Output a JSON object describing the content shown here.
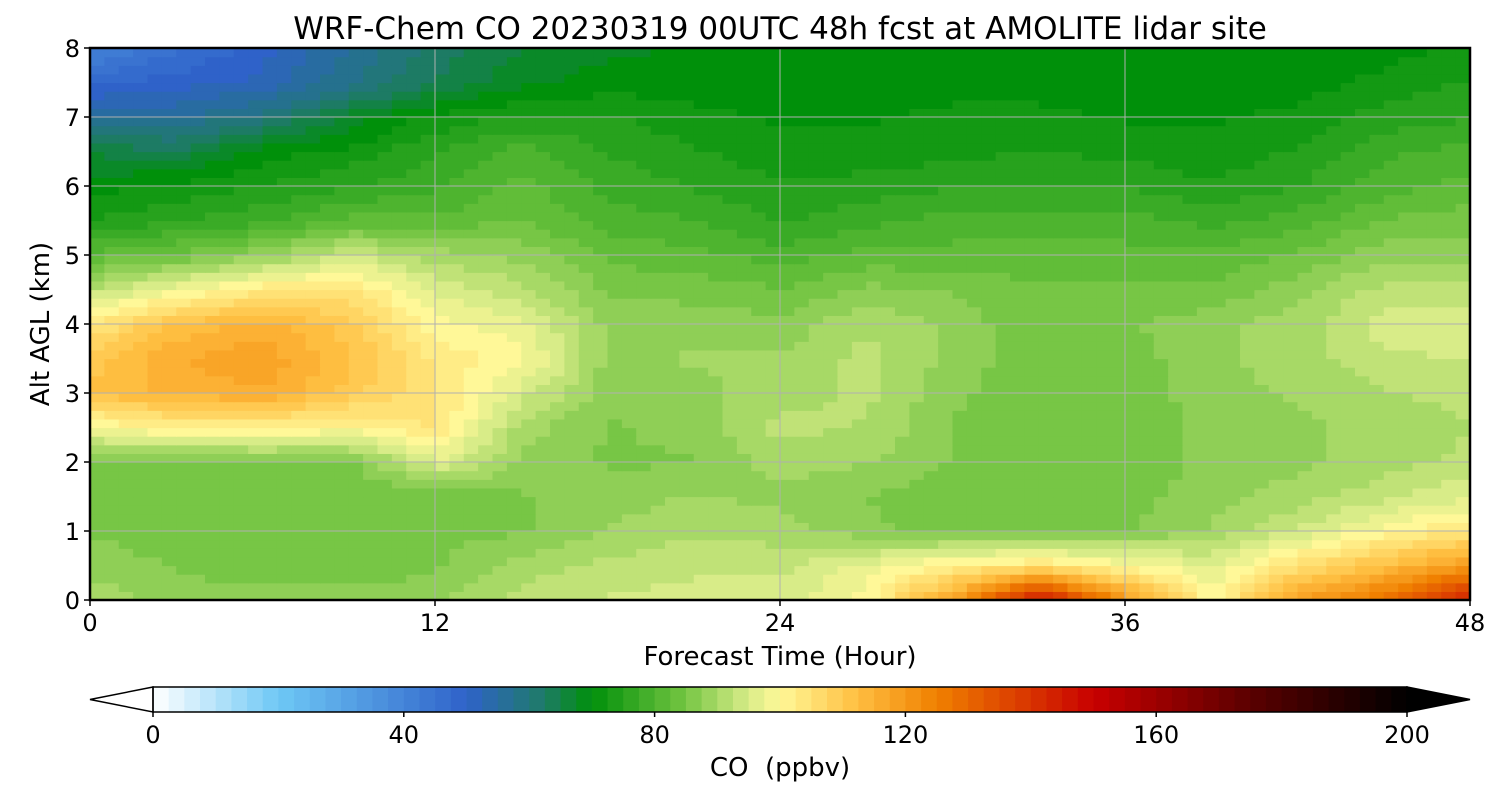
{
  "chart_data": {
    "type": "heatmap",
    "title": "WRF-Chem CO  20230319 00UTC 48h fcst at AMOLITE lidar site",
    "xlabel": "Forecast Time (Hour)",
    "ylabel": "Alt AGL (km)",
    "xlim": [
      0,
      48
    ],
    "ylim": [
      0,
      8
    ],
    "x_ticks": [
      0,
      12,
      24,
      36,
      48
    ],
    "y_ticks": [
      0,
      1,
      2,
      3,
      4,
      5,
      6,
      7,
      8
    ],
    "grid": true,
    "colorbar": {
      "label": "CO  (ppbv)",
      "range": [
        0,
        200
      ],
      "ticks": [
        0,
        40,
        80,
        120,
        160,
        200
      ],
      "extend": "both",
      "stops": [
        {
          "value": 0,
          "color": "#ffffff"
        },
        {
          "value": 20,
          "color": "#6ec8f5"
        },
        {
          "value": 50,
          "color": "#2f62c9"
        },
        {
          "value": 62,
          "color": "#1f7a6a"
        },
        {
          "value": 70,
          "color": "#00900a"
        },
        {
          "value": 84,
          "color": "#6dc23e"
        },
        {
          "value": 95,
          "color": "#d8ec88"
        },
        {
          "value": 100,
          "color": "#fff898"
        },
        {
          "value": 112,
          "color": "#ffc043"
        },
        {
          "value": 125,
          "color": "#f08000"
        },
        {
          "value": 150,
          "color": "#c80000"
        },
        {
          "value": 175,
          "color": "#5a0000"
        },
        {
          "value": 200,
          "color": "#000000"
        }
      ]
    },
    "x": [
      0,
      3,
      6,
      9,
      12,
      15,
      18,
      21,
      24,
      27,
      30,
      33,
      36,
      39,
      42,
      45,
      48
    ],
    "y": [
      0,
      0.5,
      1,
      1.5,
      2,
      2.5,
      3,
      3.5,
      4,
      4.5,
      5,
      5.5,
      6,
      6.5,
      7,
      7.5,
      8
    ],
    "values": [
      [
        90,
        88,
        88,
        88,
        88,
        92,
        94,
        95,
        95,
        100,
        118,
        148,
        120,
        100,
        118,
        128,
        145
      ],
      [
        88,
        86,
        84,
        84,
        86,
        90,
        92,
        93,
        93,
        97,
        102,
        104,
        100,
        96,
        105,
        112,
        120
      ],
      [
        86,
        84,
        84,
        84,
        85,
        86,
        89,
        91,
        90,
        87,
        85,
        85,
        86,
        89,
        94,
        100,
        104
      ],
      [
        85,
        84,
        84,
        84,
        84,
        86,
        87,
        89,
        88,
        86,
        85,
        84,
        85,
        88,
        90,
        93,
        96
      ],
      [
        86,
        84,
        85,
        85,
        96,
        88,
        86,
        86,
        90,
        89,
        86,
        84,
        84,
        87,
        88,
        90,
        92
      ],
      [
        98,
        102,
        102,
        100,
        104,
        90,
        86,
        87,
        92,
        91,
        86,
        84,
        84,
        87,
        88,
        90,
        91
      ],
      [
        112,
        115,
        116,
        110,
        104,
        95,
        87,
        88,
        90,
        92,
        87,
        84,
        84,
        88,
        89,
        91,
        92
      ],
      [
        110,
        116,
        118,
        112,
        103,
        100,
        88,
        89,
        89,
        92,
        88,
        84,
        85,
        88,
        90,
        93,
        94
      ],
      [
        103,
        112,
        115,
        110,
        100,
        97,
        88,
        88,
        87,
        91,
        88,
        84,
        86,
        88,
        90,
        95,
        95
      ],
      [
        92,
        98,
        103,
        104,
        96,
        92,
        86,
        85,
        84,
        87,
        86,
        84,
        84,
        84,
        88,
        92,
        92
      ],
      [
        82,
        84,
        88,
        94,
        90,
        88,
        83,
        82,
        80,
        82,
        82,
        82,
        82,
        82,
        84,
        88,
        88
      ],
      [
        74,
        76,
        78,
        82,
        82,
        84,
        80,
        79,
        76,
        78,
        80,
        80,
        80,
        78,
        80,
        84,
        85
      ],
      [
        70,
        72,
        74,
        76,
        78,
        82,
        78,
        76,
        74,
        75,
        76,
        76,
        76,
        74,
        76,
        80,
        82
      ],
      [
        66,
        64,
        70,
        72,
        76,
        80,
        76,
        74,
        72,
        72,
        73,
        74,
        73,
        72,
        74,
        78,
        80
      ],
      [
        56,
        56,
        60,
        67,
        72,
        74,
        74,
        72,
        71,
        71,
        72,
        72,
        71,
        71,
        72,
        75,
        76
      ],
      [
        48,
        50,
        52,
        58,
        64,
        68,
        70,
        70,
        70,
        70,
        70,
        70,
        70,
        70,
        70,
        72,
        74
      ],
      [
        40,
        46,
        50,
        56,
        62,
        66,
        68,
        69,
        70,
        70,
        70,
        70,
        70,
        70,
        70,
        70,
        72
      ]
    ]
  }
}
